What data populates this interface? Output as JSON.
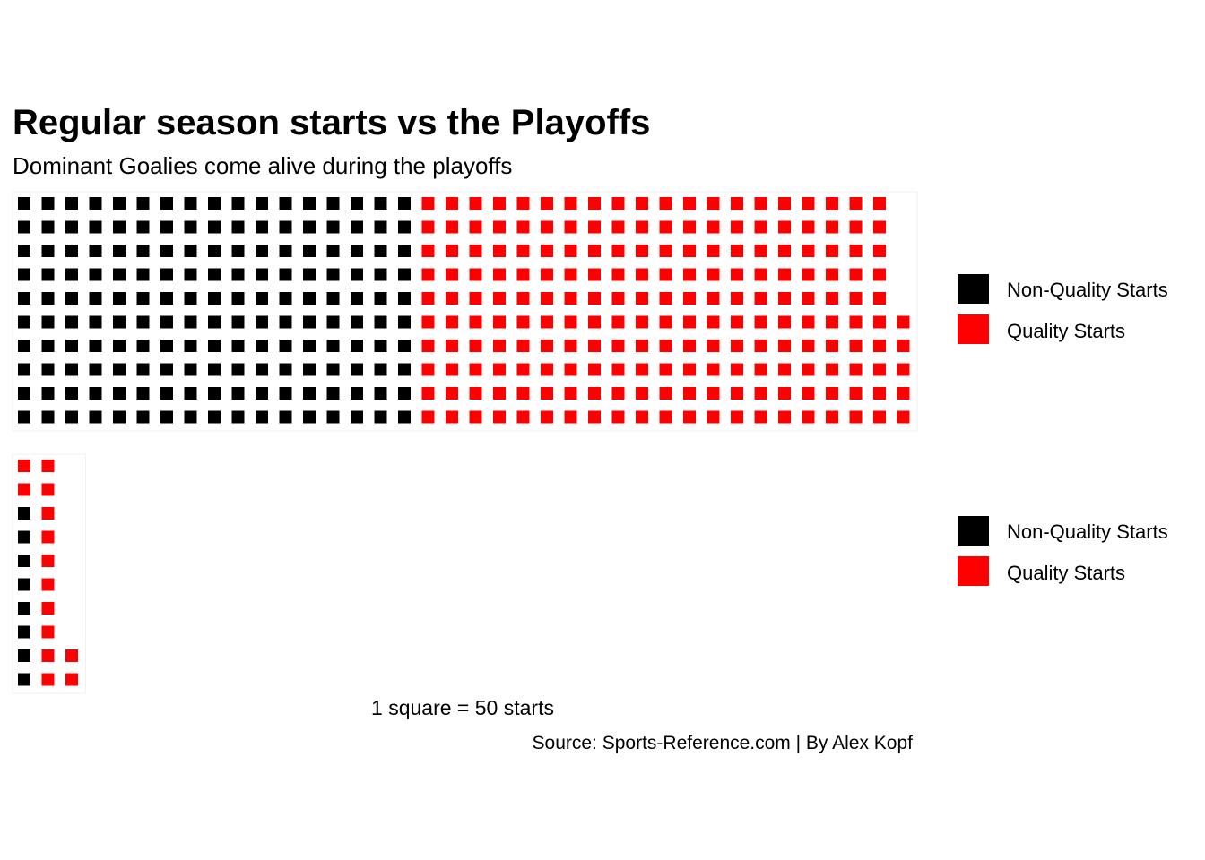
{
  "colors": {
    "non_quality": "#000000",
    "quality": "#FF0000"
  },
  "chart_data": {
    "type": "waffle",
    "title": "Regular season starts vs the Playoffs",
    "subtitle": "Dominant Goalies come alive during the playoffs",
    "unit_note": "1 square = 50 starts",
    "source": "Source: Sports-Reference.com | By Alex Kopf",
    "squares_per_column": 10,
    "panels": [
      {
        "categories": [
          "Non-Quality Starts",
          "Quality Starts"
        ],
        "values": [
          170,
          205
        ],
        "legend": [
          "Non-Quality Starts",
          "Quality Starts"
        ]
      },
      {
        "categories": [
          "Non-Quality Starts",
          "Quality Starts"
        ],
        "values": [
          8,
          14
        ],
        "legend": [
          "Non-Quality Starts",
          "Quality Starts"
        ]
      }
    ]
  }
}
